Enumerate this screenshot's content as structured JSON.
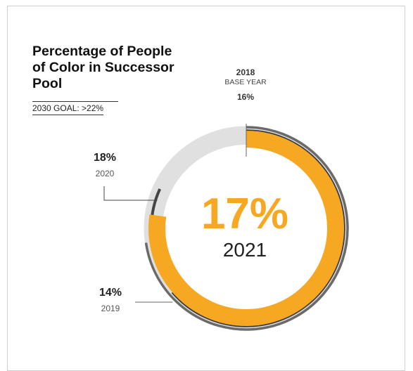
{
  "header": {
    "title": "Percentage of People of Color in Successor Pool",
    "goal": "2030 GOAL: >22%"
  },
  "base": {
    "year": "2018",
    "caption": "BASE YEAR",
    "percent": "16%"
  },
  "center": {
    "percent": "17%",
    "year": "2021"
  },
  "labels": {
    "y2020": {
      "percent": "18%",
      "year": "2020"
    },
    "y2019": {
      "percent": "14%",
      "year": "2019"
    }
  },
  "colors": {
    "accent": "#f7a823",
    "track": "#e0e0e0",
    "dark": "#444444",
    "outer": "#6a6a6a"
  },
  "chart_data": {
    "type": "radial",
    "title": "Percentage of People of Color in Successor Pool",
    "goal_2030": ">22%",
    "scale_max_percent": 22,
    "series": [
      {
        "year": "2018",
        "value": 16,
        "note": "BASE YEAR"
      },
      {
        "year": "2019",
        "value": 14
      },
      {
        "year": "2020",
        "value": 18
      },
      {
        "year": "2021",
        "value": 17
      }
    ]
  }
}
